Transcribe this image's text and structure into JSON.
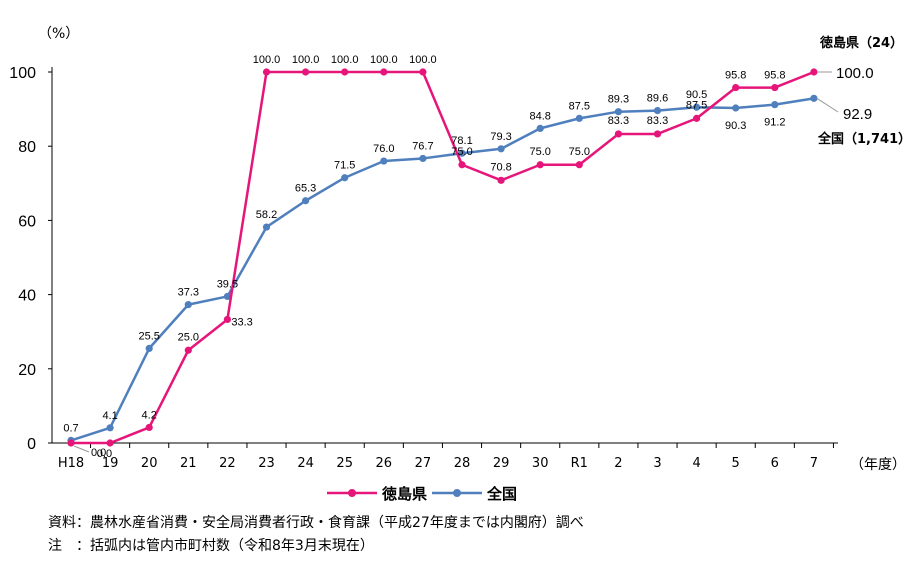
{
  "chart_data": {
    "type": "line",
    "y_unit_label": "（%）",
    "x_unit_label": "（年度）",
    "ylim": [
      0,
      100
    ],
    "yticks": [
      0,
      20,
      40,
      60,
      80,
      100
    ],
    "categories": [
      "H18",
      "19",
      "20",
      "21",
      "22",
      "23",
      "24",
      "25",
      "26",
      "27",
      "28",
      "29",
      "30",
      "R1",
      "2",
      "3",
      "4",
      "5",
      "6",
      "7"
    ],
    "series": [
      {
        "name": "徳島県",
        "end_label": "徳島県（24）",
        "end_value_label": "100.0",
        "color": "#e6157a",
        "values": [
          0.0,
          0.0,
          4.2,
          25.0,
          33.3,
          100.0,
          100.0,
          100.0,
          100.0,
          100.0,
          75.0,
          70.8,
          75.0,
          75.0,
          83.3,
          83.3,
          87.5,
          95.8,
          95.8,
          100.0
        ],
        "labels": [
          "",
          "0.0",
          "4.2",
          "25.0",
          "33.3",
          "100.0",
          "100.0",
          "100.0",
          "100.0",
          "100.0",
          "75.0",
          "70.8",
          "75.0",
          "75.0",
          "83.3",
          "83.3",
          "87.5",
          "95.8",
          "95.8",
          ""
        ]
      },
      {
        "name": "全国",
        "end_label": "全国（1,741）",
        "end_value_label": "92.9",
        "color": "#4f7fbd",
        "values": [
          0.7,
          4.1,
          25.5,
          37.3,
          39.5,
          58.2,
          65.3,
          71.5,
          76.0,
          76.7,
          78.1,
          79.3,
          84.8,
          87.5,
          89.3,
          89.6,
          90.5,
          90.3,
          91.2,
          92.9
        ],
        "labels": [
          "0.7",
          "4.1",
          "25.5",
          "37.3",
          "39.5",
          "58.2",
          "65.3",
          "71.5",
          "76.0",
          "76.7",
          "78.1",
          "79.3",
          "84.8",
          "87.5",
          "89.3",
          "89.6",
          "90.5",
          "90.3",
          "91.2",
          ""
        ]
      }
    ],
    "first_point_label": "0.0",
    "legend": {
      "placement": "bottom",
      "items": [
        "徳島県",
        "全国"
      ]
    },
    "grid": false
  },
  "notes": {
    "source": "資料：農林水産省消費・安全局消費者行政・食育課（平成27年度までは内閣府）調べ",
    "note": "注　：括弧内は管内市町村数（令和8年3月末現在）"
  }
}
